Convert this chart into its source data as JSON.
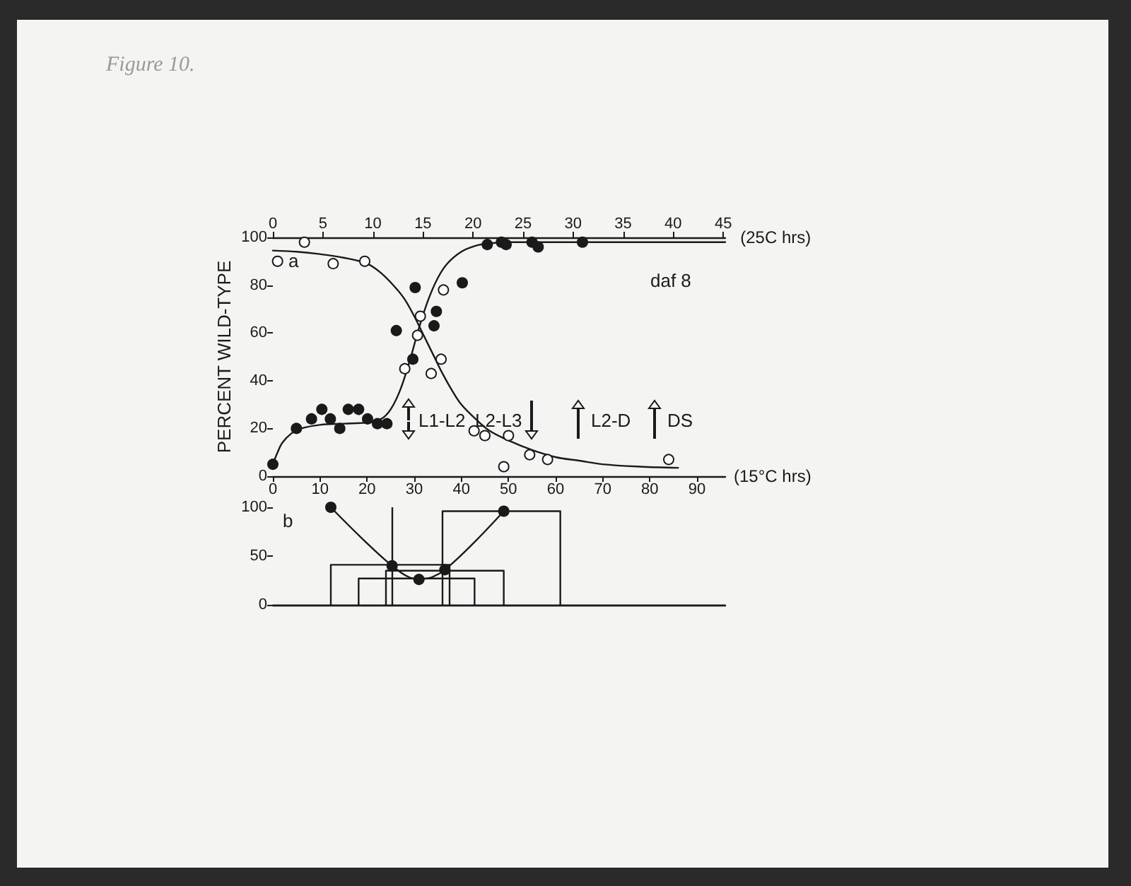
{
  "chart_data": [
    {
      "type": "scatter",
      "xlabel": "(15°C hrs)",
      "x2label": "(25C hrs)",
      "ylabel": "PERCENT WILD-TYPE",
      "marker": "circle",
      "xlim": [
        0,
        96
      ],
      "xticks": [
        0,
        10,
        20,
        30,
        40,
        50,
        60,
        70,
        80,
        90
      ],
      "x2lim": [
        0,
        45.2
      ],
      "x2ticks": [
        0,
        5,
        10,
        15,
        20,
        25,
        30,
        35,
        40,
        45
      ],
      "ylim": [
        0,
        100
      ],
      "yticks": [
        0,
        20,
        40,
        60,
        80,
        100
      ],
      "annotations": [
        "Figure 10.",
        "a",
        "daf 8",
        "L1-L2",
        "L2-L3",
        "L2-D",
        "DS"
      ],
      "series": [
        {
          "color": "#1a1a1a",
          "x": [
            0,
            5,
            8.2,
            10.4,
            12.2,
            14.2,
            16,
            18.2,
            20.1,
            22.2,
            24.2,
            26.2,
            29.7,
            30.2,
            34.2,
            34.7,
            40.2,
            45.5,
            48.5,
            49.5,
            55,
            56.3,
            65.7
          ],
          "values": [
            5,
            20,
            24,
            28,
            24,
            20,
            28,
            28,
            24,
            22,
            22,
            61,
            49,
            79,
            63,
            69,
            81,
            97,
            98,
            97,
            98,
            96,
            98
          ]
        },
        {
          "color": "#ffffff",
          "x": [
            1,
            6.7,
            12.8,
            19.5,
            28,
            30.7,
            31.3,
            36.2,
            33.6,
            35.7,
            42.7,
            45,
            50,
            49,
            54.5,
            58.3,
            84
          ],
          "values": [
            90,
            98,
            89,
            90,
            45,
            59,
            67,
            78,
            43,
            49,
            19,
            17,
            17,
            4,
            9,
            7,
            7
          ]
        },
        {
          "type": "line",
          "marker": "none",
          "color": "#1a1a1a",
          "x": [
            0,
            1,
            2,
            4,
            6,
            10,
            15,
            20,
            23,
            25,
            27,
            29,
            31,
            33,
            35,
            37,
            40,
            43,
            46,
            50,
            60,
            70,
            80,
            96
          ],
          "values": [
            5,
            10,
            14,
            18,
            20,
            21.5,
            22,
            22.5,
            24,
            28,
            36,
            48,
            62,
            74,
            83,
            89,
            94,
            96.5,
            97.5,
            98,
            98,
            98,
            98,
            98
          ]
        },
        {
          "type": "line",
          "marker": "none",
          "color": "#1a1a1a",
          "x": [
            0,
            5,
            10,
            15,
            20,
            23,
            26,
            28,
            30,
            32,
            34,
            36,
            38,
            40,
            43,
            46,
            50,
            55,
            60,
            65,
            70,
            78,
            86
          ],
          "values": [
            94.5,
            94,
            93,
            91.5,
            89,
            85,
            79,
            74,
            67,
            59,
            51,
            43,
            36,
            30,
            24,
            19,
            15,
            11,
            8,
            6.5,
            5,
            4,
            3.5
          ]
        }
      ]
    },
    {
      "type": "line",
      "marker": "circle",
      "xlim": [
        0,
        96
      ],
      "ylim": [
        0,
        100
      ],
      "yticks": [
        0,
        50,
        100
      ],
      "tick_labels": "y",
      "annotations": [
        "b"
      ],
      "ref_lines": [
        {
          "axis": "x",
          "value": 25.3
        }
      ],
      "series": [
        {
          "color": "#1a1a1a",
          "x": [
            12.3,
            25.3,
            31,
            36.5,
            49
          ],
          "values": [
            100,
            40,
            26,
            36,
            96
          ]
        },
        {
          "type": "step",
          "marker": "none",
          "color": "#1a1a1a",
          "x": [
            12.3,
            12.3,
            37.5,
            37.5
          ],
          "values": [
            0,
            41,
            41,
            0
          ]
        },
        {
          "type": "step",
          "marker": "none",
          "color": "#1a1a1a",
          "x": [
            18.2,
            18.2,
            42.8,
            42.8
          ],
          "values": [
            0,
            27,
            27,
            0
          ]
        },
        {
          "type": "step",
          "marker": "none",
          "color": "#1a1a1a",
          "x": [
            24,
            24,
            49,
            49
          ],
          "values": [
            0,
            35,
            35,
            0
          ]
        },
        {
          "type": "step",
          "marker": "none",
          "color": "#1a1a1a",
          "x": [
            36,
            36,
            61,
            61
          ],
          "values": [
            0,
            96,
            96,
            0
          ]
        }
      ]
    }
  ]
}
